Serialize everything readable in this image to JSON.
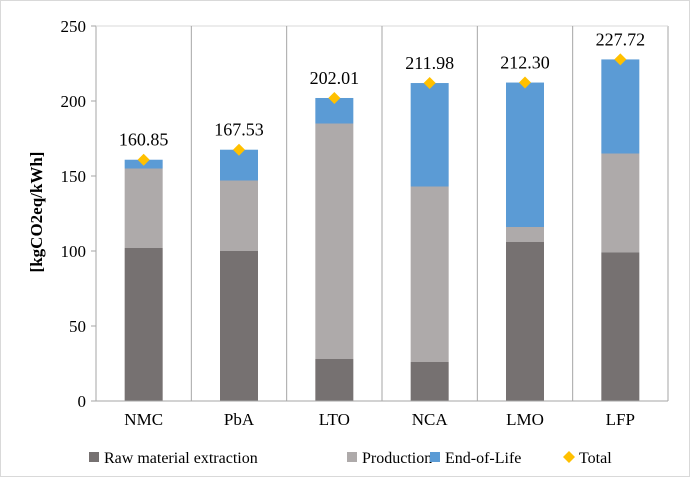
{
  "chart_data": {
    "type": "bar",
    "stacked": true,
    "categories": [
      "NMC",
      "PbA",
      "LTO",
      "NCA",
      "LMO",
      "LFP"
    ],
    "series": [
      {
        "name": "Raw material extraction",
        "color": "#767171",
        "values": [
          102,
          100,
          28,
          26,
          106,
          99
        ]
      },
      {
        "name": "Production",
        "color": "#AEAAAA",
        "values": [
          53,
          47,
          157,
          117,
          10,
          66
        ]
      },
      {
        "name": "End-of-Life",
        "color": "#5B9BD5",
        "values": [
          5.85,
          20.53,
          17.01,
          68.98,
          96.3,
          62.72
        ]
      }
    ],
    "total": {
      "name": "Total",
      "color": "#FFC000",
      "marker": "diamond",
      "values": [
        160.85,
        167.53,
        202.01,
        211.98,
        212.3,
        227.72
      ],
      "labels": [
        "160.85",
        "167.53",
        "202.01",
        "211.98",
        "212.30",
        "227.72"
      ]
    },
    "ylabel": "[kgCO2eq/kWh]",
    "xlabel": "",
    "title": "",
    "ylim": [
      0,
      250
    ],
    "yticks": [
      0,
      50,
      100,
      150,
      200,
      250
    ],
    "grid": "vertical separators between categories",
    "legend_position": "bottom"
  }
}
